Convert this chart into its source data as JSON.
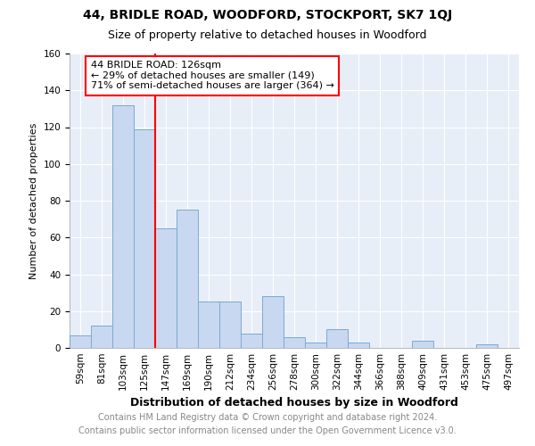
{
  "title": "44, BRIDLE ROAD, WOODFORD, STOCKPORT, SK7 1QJ",
  "subtitle": "Size of property relative to detached houses in Woodford",
  "xlabel": "Distribution of detached houses by size in Woodford",
  "ylabel": "Number of detached properties",
  "bin_labels": [
    "59sqm",
    "81sqm",
    "103sqm",
    "125sqm",
    "147sqm",
    "169sqm",
    "190sqm",
    "212sqm",
    "234sqm",
    "256sqm",
    "278sqm",
    "300sqm",
    "322sqm",
    "344sqm",
    "366sqm",
    "388sqm",
    "409sqm",
    "431sqm",
    "453sqm",
    "475sqm",
    "497sqm"
  ],
  "bar_heights": [
    7,
    12,
    132,
    119,
    65,
    75,
    25,
    25,
    8,
    28,
    6,
    3,
    10,
    3,
    0,
    0,
    4,
    0,
    0,
    2,
    0
  ],
  "bar_color": "#c8d8f0",
  "bar_edge_color": "#7aaad4",
  "red_line_bin_index": 3,
  "annotation_text": "44 BRIDLE ROAD: 126sqm\n← 29% of detached houses are smaller (149)\n71% of semi-detached houses are larger (364) →",
  "annotation_box_facecolor": "white",
  "annotation_box_edgecolor": "red",
  "ylim": [
    0,
    160
  ],
  "yticks": [
    0,
    20,
    40,
    60,
    80,
    100,
    120,
    140,
    160
  ],
  "footer_line1": "Contains HM Land Registry data © Crown copyright and database right 2024.",
  "footer_line2": "Contains public sector information licensed under the Open Government Licence v3.0.",
  "background_color": "#e8eef8",
  "grid_color": "#ffffff",
  "title_fontsize": 10,
  "subtitle_fontsize": 9,
  "xlabel_fontsize": 9,
  "ylabel_fontsize": 8,
  "tick_fontsize": 7.5,
  "annotation_fontsize": 8,
  "footer_fontsize": 7
}
